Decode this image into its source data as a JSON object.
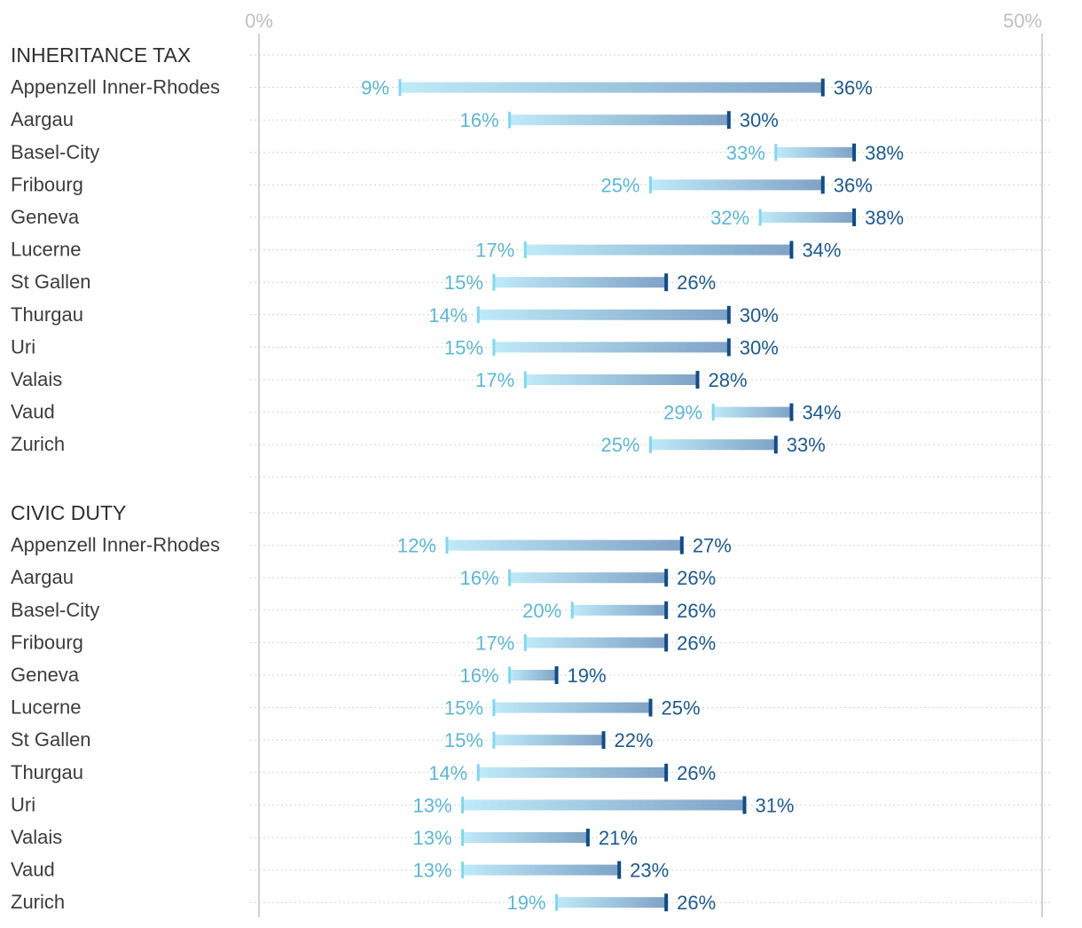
{
  "chart_data": {
    "type": "range-bar",
    "xlim": [
      0,
      50
    ],
    "tick_labels": [
      "0%",
      "50%"
    ],
    "value_suffix": "%",
    "colors": {
      "low": "#5bb8d6",
      "high": "#1c5a90",
      "bar_start": "#bfeaf8",
      "bar_end": "#7fa2c6",
      "low_tick": "#7dd8f2",
      "high_tick": "#0f4c8a"
    },
    "sections": [
      {
        "title": "INHERITANCE TAX",
        "rows": [
          {
            "label": "Appenzell Inner-Rhodes",
            "low": 9,
            "high": 36
          },
          {
            "label": "Aargau",
            "low": 16,
            "high": 30
          },
          {
            "label": "Basel-City",
            "low": 33,
            "high": 38
          },
          {
            "label": "Fribourg",
            "low": 25,
            "high": 36
          },
          {
            "label": "Geneva",
            "low": 32,
            "high": 38
          },
          {
            "label": "Lucerne",
            "low": 17,
            "high": 34
          },
          {
            "label": "St Gallen",
            "low": 15,
            "high": 26
          },
          {
            "label": "Thurgau",
            "low": 14,
            "high": 30
          },
          {
            "label": "Uri",
            "low": 15,
            "high": 30
          },
          {
            "label": "Valais",
            "low": 17,
            "high": 28
          },
          {
            "label": "Vaud",
            "low": 29,
            "high": 34
          },
          {
            "label": "Zurich",
            "low": 25,
            "high": 33
          }
        ]
      },
      {
        "title": "CIVIC DUTY",
        "rows": [
          {
            "label": "Appenzell Inner-Rhodes",
            "low": 12,
            "high": 27
          },
          {
            "label": "Aargau",
            "low": 16,
            "high": 26
          },
          {
            "label": "Basel-City",
            "low": 20,
            "high": 26
          },
          {
            "label": "Fribourg",
            "low": 17,
            "high": 26
          },
          {
            "label": "Geneva",
            "low": 16,
            "high": 19
          },
          {
            "label": "Lucerne",
            "low": 15,
            "high": 25
          },
          {
            "label": "St Gallen",
            "low": 15,
            "high": 22
          },
          {
            "label": "Thurgau",
            "low": 14,
            "high": 26
          },
          {
            "label": "Uri",
            "low": 13,
            "high": 31
          },
          {
            "label": "Valais",
            "low": 13,
            "high": 21
          },
          {
            "label": "Vaud",
            "low": 13,
            "high": 23
          },
          {
            "label": "Zurich",
            "low": 19,
            "high": 26
          }
        ]
      }
    ]
  }
}
